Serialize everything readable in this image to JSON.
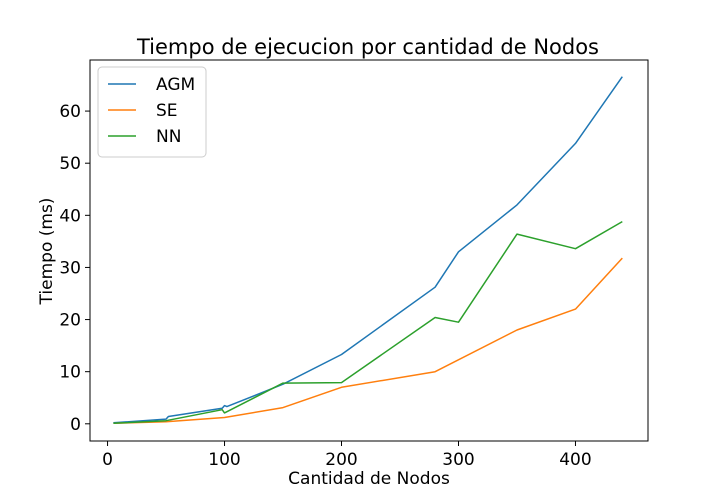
{
  "chart_data": {
    "type": "line",
    "title": "Tiempo de ejecucion por cantidad de Nodos",
    "xlabel": "Cantidad de Nodos",
    "ylabel": "Tiempo (ms)",
    "xlim": [
      -15,
      462
    ],
    "ylim": [
      -3.3,
      69.8
    ],
    "xticks": [
      0,
      100,
      200,
      300,
      400
    ],
    "yticks": [
      0,
      10,
      20,
      30,
      40,
      50,
      60
    ],
    "grid": false,
    "legend_position": "upper-left",
    "series": [
      {
        "name": "AGM",
        "color": "#1f77b4",
        "x": [
          5,
          50,
          52,
          98,
          100,
          102,
          150,
          200,
          280,
          300,
          350,
          400,
          440
        ],
        "y": [
          0.2,
          0.9,
          1.4,
          3.0,
          3.5,
          3.3,
          7.6,
          13.3,
          26.2,
          33.0,
          42.0,
          53.8,
          66.6
        ]
      },
      {
        "name": "SE",
        "color": "#ff7f0e",
        "x": [
          5,
          50,
          100,
          150,
          200,
          280,
          350,
          400,
          440
        ],
        "y": [
          0.1,
          0.4,
          1.2,
          3.1,
          7.0,
          10.0,
          18.0,
          22.0,
          31.8
        ]
      },
      {
        "name": "NN",
        "color": "#2ca02c",
        "x": [
          5,
          50,
          98,
          100,
          150,
          200,
          280,
          300,
          350,
          400,
          440
        ],
        "y": [
          0.1,
          0.6,
          2.7,
          2.1,
          7.8,
          7.9,
          20.4,
          19.5,
          36.4,
          33.6,
          38.8
        ]
      }
    ]
  }
}
